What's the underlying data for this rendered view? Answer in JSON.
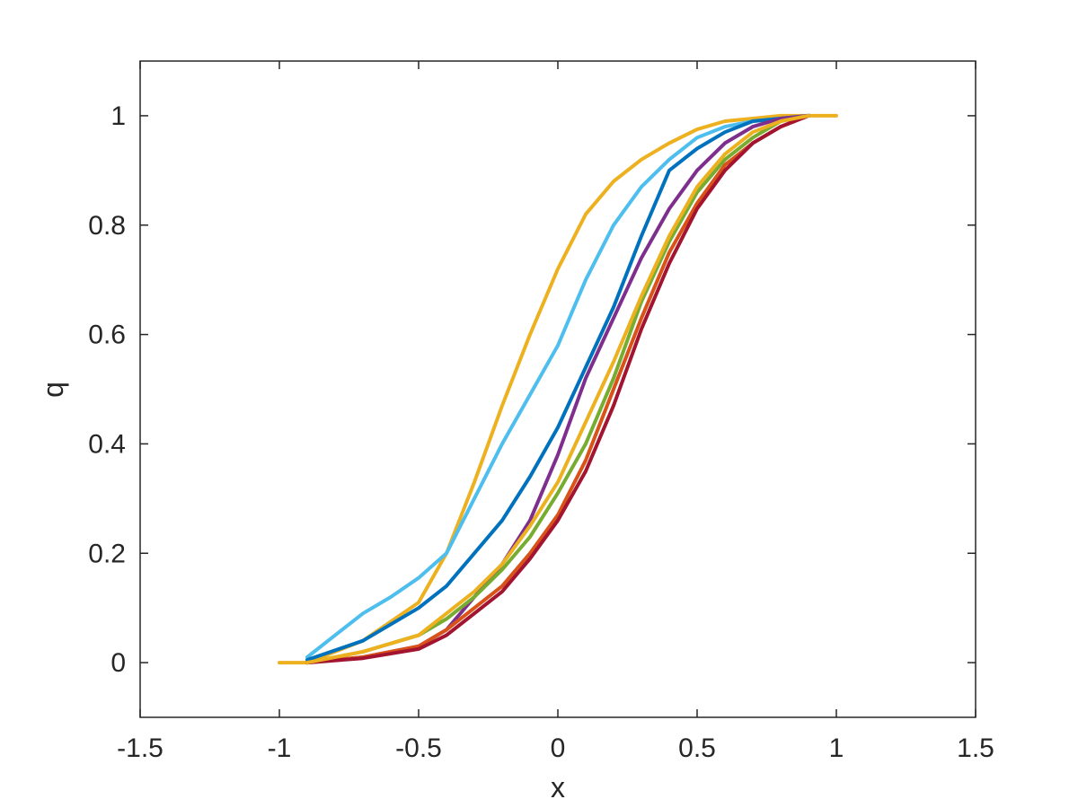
{
  "chart_data": {
    "type": "line",
    "title": "",
    "xlabel": "x",
    "ylabel": "q",
    "xlim": [
      -1.5,
      1.5
    ],
    "ylim": [
      -0.1,
      1.1
    ],
    "xticks": [
      -1.5,
      -1,
      -0.5,
      0,
      0.5,
      1,
      1.5
    ],
    "xtick_labels": [
      "-1.5",
      "-1",
      "-0.5",
      "0",
      "0.5",
      "1",
      "1.5"
    ],
    "yticks": [
      0,
      0.2,
      0.4,
      0.6,
      0.8,
      1
    ],
    "ytick_labels": [
      "0",
      "0.2",
      "0.4",
      "0.6",
      "0.8",
      "1"
    ],
    "grid": false,
    "legend": "none",
    "series": [
      {
        "color": "#EDB120",
        "x": [
          -1.0,
          -0.9,
          -0.7,
          -0.5,
          -0.4,
          -0.3,
          -0.2,
          -0.1,
          0.0,
          0.1,
          0.2,
          0.3,
          0.4,
          0.5,
          0.6,
          0.7,
          0.8,
          0.9,
          1.0
        ],
        "y": [
          0.0,
          0.0,
          0.04,
          0.11,
          0.2,
          0.33,
          0.47,
          0.6,
          0.72,
          0.82,
          0.88,
          0.92,
          0.95,
          0.975,
          0.99,
          0.995,
          1.0,
          1.0,
          1.0
        ]
      },
      {
        "color": "#4DBEEE",
        "x": [
          -0.9,
          -0.8,
          -0.7,
          -0.6,
          -0.5,
          -0.4,
          -0.3,
          -0.2,
          -0.1,
          0.0,
          0.1,
          0.2,
          0.3,
          0.4,
          0.5,
          0.6,
          0.7,
          0.8,
          0.9
        ],
        "y": [
          0.01,
          0.05,
          0.09,
          0.12,
          0.155,
          0.2,
          0.3,
          0.4,
          0.49,
          0.58,
          0.7,
          0.8,
          0.87,
          0.92,
          0.96,
          0.98,
          0.99,
          0.995,
          1.0
        ]
      },
      {
        "color": "#0072BD",
        "x": [
          -0.9,
          -0.7,
          -0.5,
          -0.4,
          -0.3,
          -0.2,
          -0.1,
          0.0,
          0.1,
          0.2,
          0.3,
          0.35,
          0.4,
          0.5,
          0.6,
          0.7,
          0.8,
          0.9
        ],
        "y": [
          0.005,
          0.04,
          0.1,
          0.14,
          0.2,
          0.26,
          0.34,
          0.43,
          0.54,
          0.65,
          0.78,
          0.84,
          0.9,
          0.94,
          0.97,
          0.99,
          0.995,
          1.0
        ]
      },
      {
        "color": "#7E2F8E",
        "x": [
          -0.9,
          -0.7,
          -0.5,
          -0.4,
          -0.3,
          -0.2,
          -0.1,
          0.0,
          0.1,
          0.2,
          0.3,
          0.4,
          0.5,
          0.6,
          0.7,
          0.8,
          0.9
        ],
        "y": [
          0.0,
          0.01,
          0.03,
          0.06,
          0.12,
          0.18,
          0.26,
          0.38,
          0.52,
          0.63,
          0.74,
          0.83,
          0.9,
          0.95,
          0.98,
          0.995,
          1.0
        ]
      },
      {
        "color": "#77AC30",
        "x": [
          -0.9,
          -0.7,
          -0.5,
          -0.4,
          -0.3,
          -0.2,
          -0.1,
          0.0,
          0.1,
          0.2,
          0.3,
          0.4,
          0.5,
          0.6,
          0.7,
          0.8,
          0.9
        ],
        "y": [
          0.0,
          0.02,
          0.05,
          0.08,
          0.12,
          0.17,
          0.23,
          0.31,
          0.4,
          0.52,
          0.66,
          0.77,
          0.86,
          0.92,
          0.96,
          0.99,
          1.0
        ]
      },
      {
        "color": "#D95319",
        "x": [
          -0.9,
          -0.7,
          -0.5,
          -0.4,
          -0.3,
          -0.2,
          -0.1,
          0.0,
          0.1,
          0.2,
          0.3,
          0.4,
          0.5,
          0.6,
          0.7,
          0.8,
          0.9
        ],
        "y": [
          0.0,
          0.01,
          0.03,
          0.06,
          0.1,
          0.14,
          0.2,
          0.27,
          0.37,
          0.5,
          0.63,
          0.75,
          0.84,
          0.91,
          0.95,
          0.98,
          1.0
        ]
      },
      {
        "color": "#A2142F",
        "x": [
          -0.9,
          -0.7,
          -0.5,
          -0.4,
          -0.3,
          -0.2,
          -0.1,
          0.0,
          0.1,
          0.2,
          0.3,
          0.4,
          0.5,
          0.6,
          0.7,
          0.8,
          0.9
        ],
        "y": [
          0.0,
          0.008,
          0.025,
          0.05,
          0.09,
          0.13,
          0.19,
          0.26,
          0.35,
          0.47,
          0.61,
          0.73,
          0.83,
          0.9,
          0.95,
          0.98,
          1.0
        ]
      },
      {
        "color": "#EDB120",
        "x": [
          -0.9,
          -0.7,
          -0.5,
          -0.4,
          -0.3,
          -0.2,
          -0.1,
          0.0,
          0.1,
          0.2,
          0.3,
          0.4,
          0.5,
          0.6,
          0.7,
          0.8,
          0.9
        ],
        "y": [
          0.0,
          0.02,
          0.05,
          0.09,
          0.13,
          0.18,
          0.25,
          0.33,
          0.44,
          0.55,
          0.67,
          0.78,
          0.87,
          0.93,
          0.97,
          0.99,
          1.0
        ]
      }
    ]
  }
}
